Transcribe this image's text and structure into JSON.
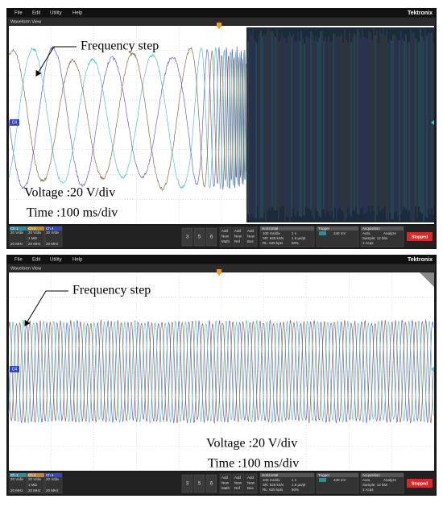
{
  "screens": [
    {
      "menu": [
        "File",
        "Edit",
        "Utility",
        "Help"
      ],
      "brand": "Tektronix",
      "view_title": "Waveform View",
      "marker": "C4",
      "annotation": "Frequency step",
      "voltage": "Voltage :20 V/div",
      "time": "Time :100 ms/div",
      "channels": [
        {
          "name": "Ch 1",
          "lines": [
            "20 V/div",
            "20 MHz"
          ]
        },
        {
          "name": "Ch 2",
          "lines": [
            "20 V/div",
            "1 MΩ",
            "20 MHz"
          ]
        },
        {
          "name": "Ch 4",
          "lines": [
            "20 V/div",
            "20 MHz"
          ]
        }
      ],
      "buttons": [
        "3",
        "5",
        "6"
      ],
      "add_buttons": [
        [
          "Add",
          "New",
          "Math"
        ],
        [
          "Add",
          "New",
          "Ref"
        ],
        [
          "Add",
          "New",
          "Bus"
        ]
      ],
      "horizontal": {
        "title": "Horizontal",
        "lines": [
          "100 ms/div",
          "SR: 625 kS/s",
          "RL: 625 kpts"
        ],
        "lines2": [
          "1 s",
          "1.6 µs/pt",
          "50%"
        ]
      },
      "trigger": {
        "title": "Trigger",
        "value": "240 mV"
      },
      "acquisition": {
        "title": "Acquisition",
        "lines": [
          "Auto,",
          "Sample: 12 bits",
          "1 Acqs"
        ],
        "extra": "Analyze"
      },
      "status": "Stopped"
    },
    {
      "menu": [
        "File",
        "Edit",
        "Utility",
        "Help"
      ],
      "brand": "Tektronix",
      "view_title": "Waveform View",
      "marker": "C4",
      "annotation": "Frequency step",
      "voltage": "Voltage :20 V/div",
      "time": "Time :100 ms/div",
      "channels": [
        {
          "name": "Ch 1",
          "lines": [
            "20 V/div",
            "20 MHz"
          ]
        },
        {
          "name": "Ch 2",
          "lines": [
            "20 V/div",
            "1 MΩ",
            "20 MHz"
          ]
        },
        {
          "name": "Ch 4",
          "lines": [
            "20 V/div",
            "20 MHz"
          ]
        }
      ],
      "buttons": [
        "3",
        "5",
        "6"
      ],
      "add_buttons": [
        [
          "Add",
          "New",
          "Math"
        ],
        [
          "Add",
          "New",
          "Ref"
        ],
        [
          "Add",
          "New",
          "Bus"
        ]
      ],
      "horizontal": {
        "title": "Horizontal",
        "lines": [
          "100 ms/div",
          "SR: 625 kS/s",
          "RL: 625 kpts"
        ],
        "lines2": [
          "1 s",
          "1.6 µs/pt",
          "50%"
        ]
      },
      "trigger": {
        "title": "Trigger",
        "value": "240 mV"
      },
      "acquisition": {
        "title": "Acquisition",
        "lines": [
          "Auto,",
          "Sample: 12 bits",
          "1 Acqs"
        ],
        "extra": "Analyze"
      },
      "status": "Stopped"
    }
  ]
}
